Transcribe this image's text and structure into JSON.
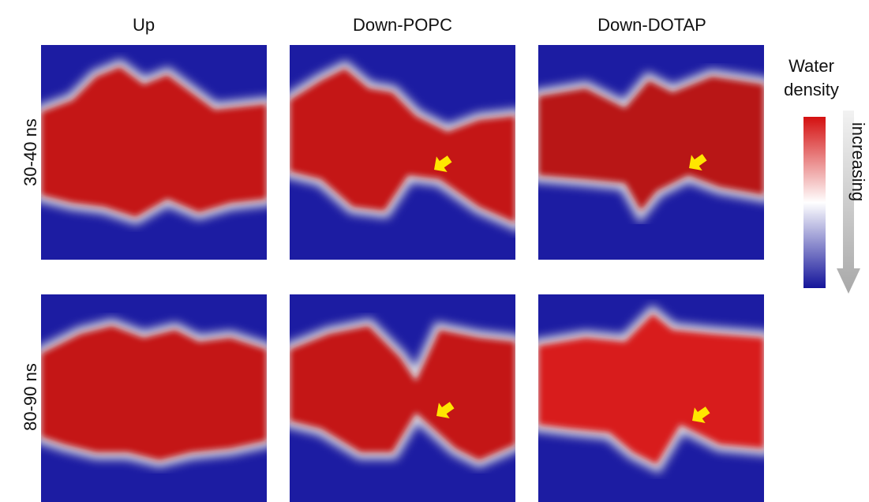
{
  "columns": [
    "Up",
    "Down-POPC",
    "Down-DOTAP"
  ],
  "rows": [
    "30-40 ns",
    "80-90 ns"
  ],
  "legend": {
    "title": [
      "Water",
      "density"
    ],
    "direction": "increasing"
  }
}
